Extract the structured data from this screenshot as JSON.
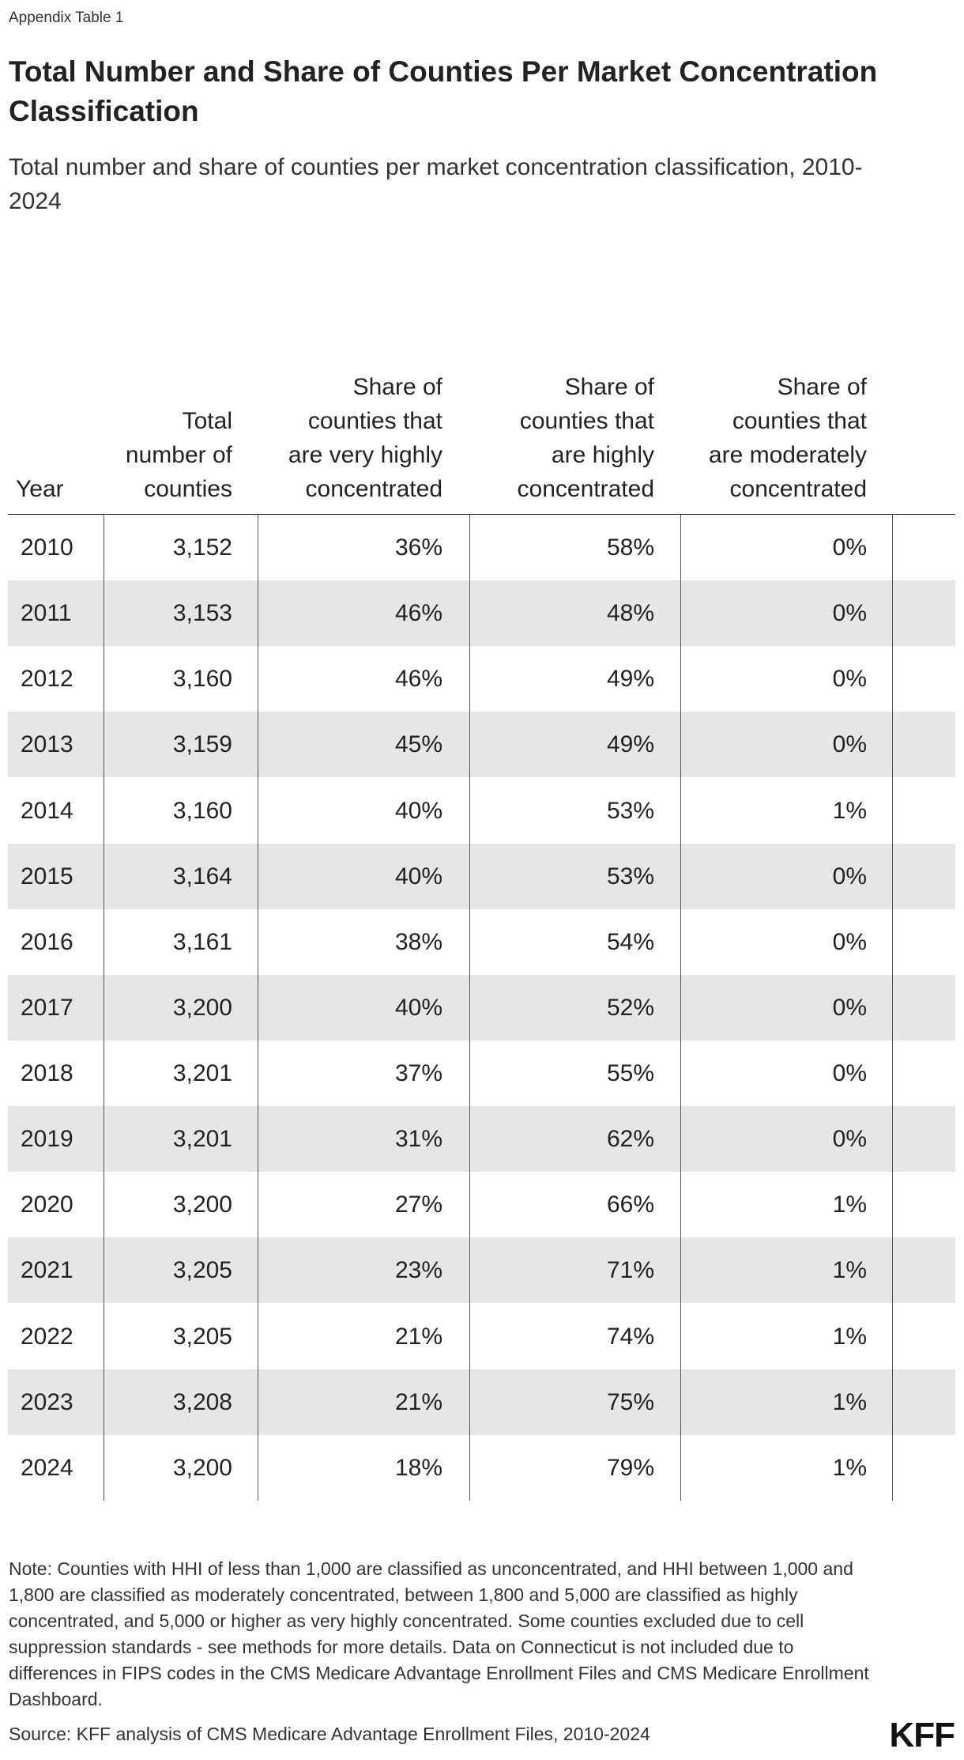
{
  "header": {
    "label": "Appendix Table 1",
    "title": "Total Number and Share of Counties Per Market Concentration Classification",
    "subtitle": "Total number and share of counties per market concentration classification, 2010-2024"
  },
  "table": {
    "columns": [
      "Year",
      "Total number of counties",
      "Share of counties that are very highly concentrated",
      "Share of counties that are highly concentrated",
      "Share of counties that are moderately concentrated"
    ],
    "rows": [
      [
        "2010",
        "3,152",
        "36%",
        "58%",
        "0%"
      ],
      [
        "2011",
        "3,153",
        "46%",
        "48%",
        "0%"
      ],
      [
        "2012",
        "3,160",
        "46%",
        "49%",
        "0%"
      ],
      [
        "2013",
        "3,159",
        "45%",
        "49%",
        "0%"
      ],
      [
        "2014",
        "3,160",
        "40%",
        "53%",
        "1%"
      ],
      [
        "2015",
        "3,164",
        "40%",
        "53%",
        "0%"
      ],
      [
        "2016",
        "3,161",
        "38%",
        "54%",
        "0%"
      ],
      [
        "2017",
        "3,200",
        "40%",
        "52%",
        "0%"
      ],
      [
        "2018",
        "3,201",
        "37%",
        "55%",
        "0%"
      ],
      [
        "2019",
        "3,201",
        "31%",
        "62%",
        "0%"
      ],
      [
        "2020",
        "3,200",
        "27%",
        "66%",
        "1%"
      ],
      [
        "2021",
        "3,205",
        "23%",
        "71%",
        "1%"
      ],
      [
        "2022",
        "3,205",
        "21%",
        "74%",
        "1%"
      ],
      [
        "2023",
        "3,208",
        "21%",
        "75%",
        "1%"
      ],
      [
        "2024",
        "3,200",
        "18%",
        "79%",
        "1%"
      ]
    ]
  },
  "footer": {
    "note": "Note: Counties with HHI of less than 1,000 are classified as unconcentrated, and HHI between 1,000 and 1,800 are classified as moderately concentrated, between 1,800 and 5,000 are classified as highly concentrated, and 5,000 or higher as very highly concentrated. Some counties excluded due to cell suppression standards - see methods for more details. Data on Connecticut is not included due to differences in FIPS codes in the CMS Medicare Advantage Enrollment Files and CMS Medicare Enrollment Dashboard.",
    "source": "Source: KFF analysis of CMS Medicare Advantage Enrollment Files, 2010-2024",
    "logo": "KFF"
  }
}
